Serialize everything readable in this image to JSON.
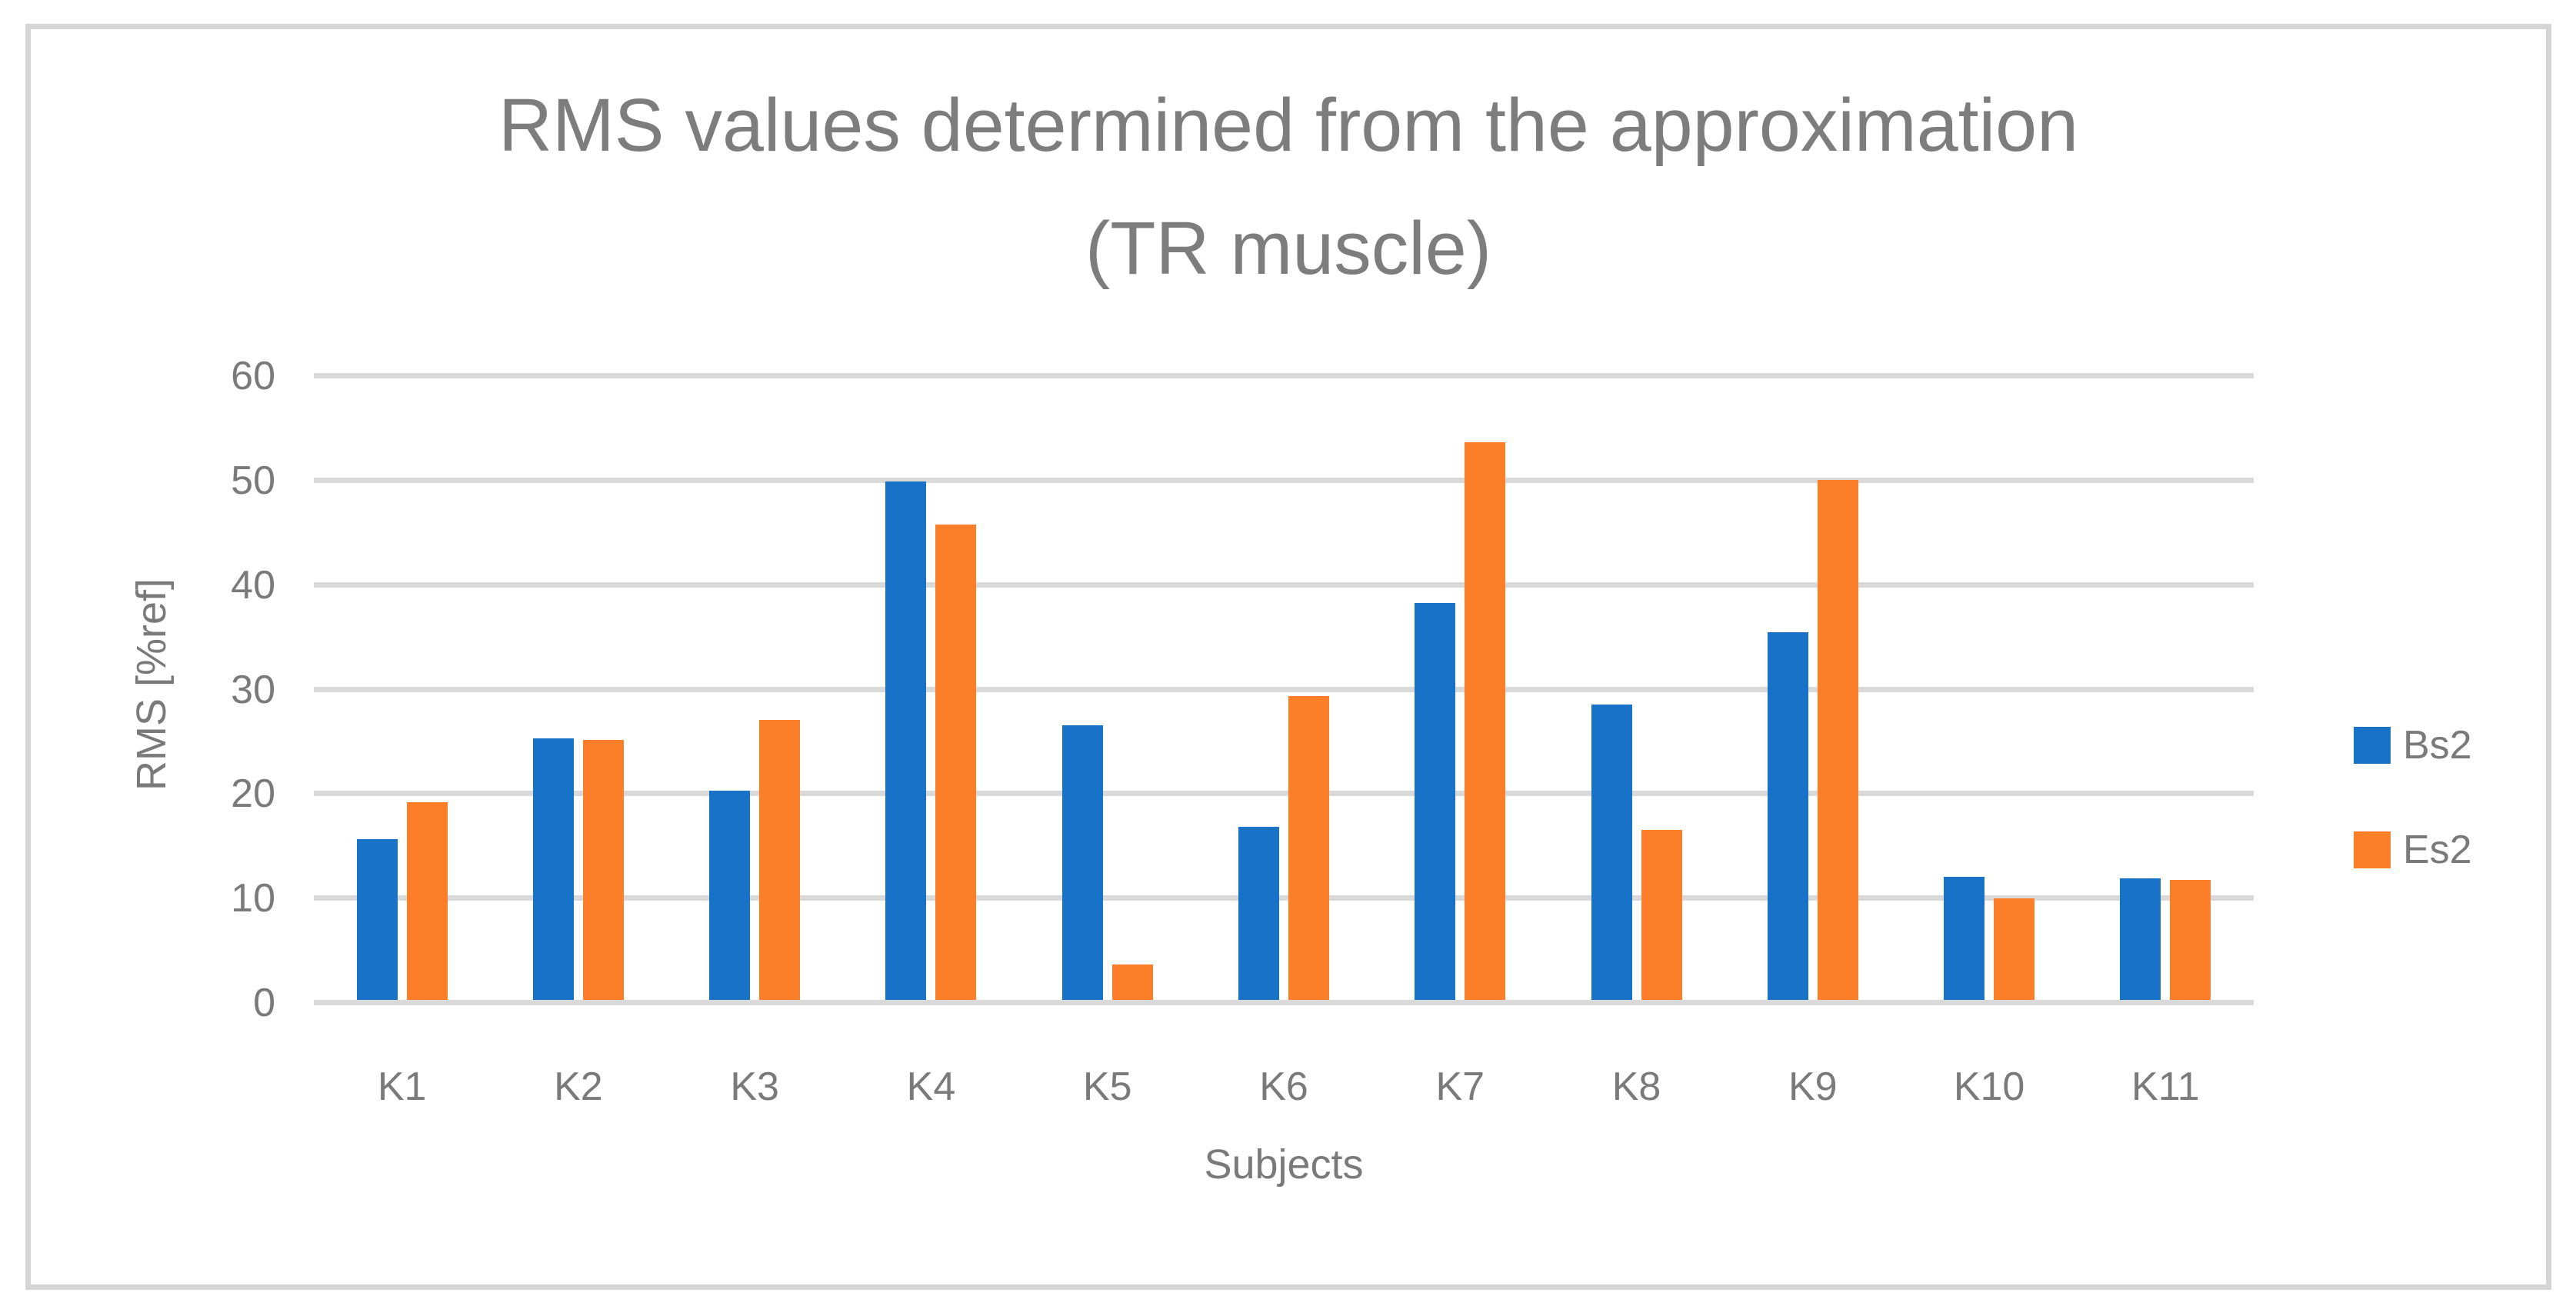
{
  "chart_data": {
    "type": "bar",
    "title_line1": "RMS values determined from the approximation",
    "title_line2": "(TR muscle)",
    "xlabel": "Subjects",
    "ylabel": "RMS [%ref]",
    "categories": [
      "K1",
      "K2",
      "K3",
      "K4",
      "K5",
      "K6",
      "K7",
      "K8",
      "K9",
      "K10",
      "K11"
    ],
    "series": [
      {
        "name": "Bs2",
        "color": "#1772C8",
        "values": [
          15.4,
          25.0,
          20.0,
          49.6,
          26.3,
          16.6,
          38.0,
          28.3,
          35.2,
          11.8,
          11.6
        ]
      },
      {
        "name": "Es2",
        "color": "#FC7E28",
        "values": [
          18.9,
          24.9,
          26.8,
          45.5,
          3.4,
          29.1,
          53.4,
          16.3,
          49.8,
          9.7,
          11.5
        ]
      }
    ],
    "ylim": [
      0,
      60
    ],
    "yticks": [
      0,
      10,
      20,
      30,
      40,
      50,
      60
    ],
    "grid": true,
    "legend_position": "right"
  },
  "colors": {
    "series_blue": "#1772C8",
    "series_orange": "#FC7E28",
    "gridline": "#D9D9D9",
    "frame_border": "#D5D5D5",
    "text_gray": "#7A7A7A",
    "title_gray": "#7D7D7D",
    "background": "#FFFFFF"
  }
}
